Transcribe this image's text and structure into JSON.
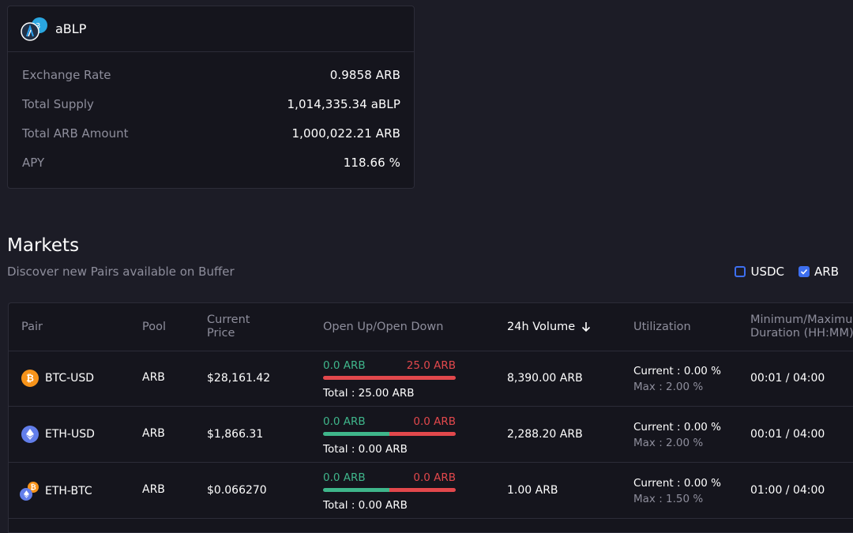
{
  "token_card": {
    "name": "aBLP",
    "rows": [
      {
        "label": "Exchange Rate",
        "value": "0.9858 ARB"
      },
      {
        "label": "Total Supply",
        "value": "1,014,335.34 aBLP"
      },
      {
        "label": "Total ARB Amount",
        "value": "1,000,022.21 ARB"
      },
      {
        "label": "APY",
        "value": "118.66 %"
      }
    ]
  },
  "markets": {
    "title": "Markets",
    "subtitle": "Discover new Pairs available on Buffer",
    "filters": [
      {
        "label": "USDC",
        "checked": false
      },
      {
        "label": "ARB",
        "checked": true
      }
    ]
  },
  "table": {
    "headers": {
      "pair": "Pair",
      "pool": "Pool",
      "price_1": "Current",
      "price_2": "Price",
      "open": "Open Up/Open Down",
      "volume": "24h Volume",
      "utilization": "Utilization",
      "duration_1": "Minimum/Maximum",
      "duration_2": "Duration (HH:MM)"
    },
    "rows": [
      {
        "pair": "BTC-USD",
        "pool": "ARB",
        "price": "$28,161.42",
        "open_up": "0.0 ARB",
        "open_down": "25.0 ARB",
        "up_fraction": 0.0,
        "total": "Total : 25.00 ARB",
        "volume": "8,390.00 ARB",
        "current": "Current : 0.00 %",
        "max": "Max : 2.00 %",
        "duration": "00:01 / 04:00"
      },
      {
        "pair": "ETH-USD",
        "pool": "ARB",
        "price": "$1,866.31",
        "open_up": "0.0 ARB",
        "open_down": "0.0 ARB",
        "up_fraction": 0.5,
        "total": "Total : 0.00 ARB",
        "volume": "2,288.20 ARB",
        "current": "Current : 0.00 %",
        "max": "Max : 2.00 %",
        "duration": "00:01 / 04:00"
      },
      {
        "pair": "ETH-BTC",
        "pool": "ARB",
        "price": "$0.066270",
        "open_up": "0.0 ARB",
        "open_down": "0.0 ARB",
        "up_fraction": 0.5,
        "total": "Total : 0.00 ARB",
        "volume": "1.00 ARB",
        "current": "Current : 0.00 %",
        "max": "Max : 1.50 %",
        "duration": "01:00 / 04:00"
      }
    ]
  },
  "colors": {
    "up": "#3fb68b",
    "down": "#e2484c",
    "accent": "#3d6ff0"
  },
  "icons": {
    "btc": "bitcoin-icon",
    "eth": "ethereum-icon",
    "sort": "arrow-down-icon"
  }
}
